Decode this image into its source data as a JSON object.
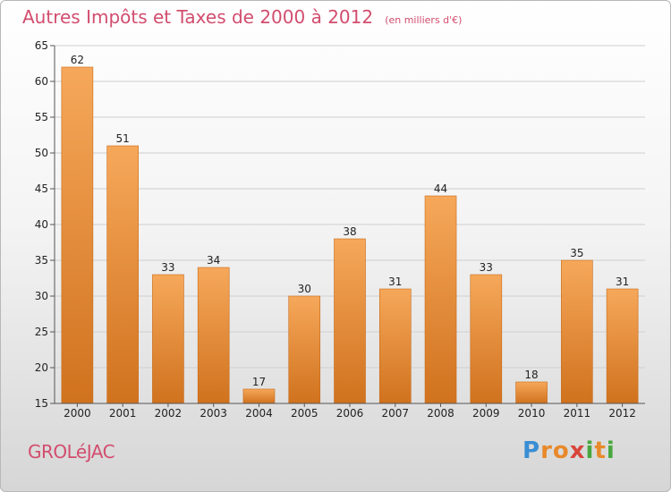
{
  "header": {
    "title": "Autres Impôts et Taxes de 2000 à 2012",
    "subtitle": "(en milliers d'€)"
  },
  "commune": "GROLéJAC",
  "logo": {
    "text": "Proxiti",
    "letters": [
      {
        "char": "P",
        "color": "#3a8ed4"
      },
      {
        "char": "r",
        "color": "#e8892a"
      },
      {
        "char": "o",
        "color": "#e8892a"
      },
      {
        "char": "x",
        "color": "#d8463c"
      },
      {
        "char": "i",
        "color": "#48a73e"
      },
      {
        "char": "t",
        "color": "#e8892a"
      },
      {
        "char": "i",
        "color": "#48a73e"
      }
    ]
  },
  "colors": {
    "bar_top": "#f6a85a",
    "bar_bottom": "#d0721e",
    "bar_stroke": "#c76a18",
    "grid": "#cfcfcf",
    "axis": "#555555",
    "text": "#222222",
    "title": "#d24d6e"
  },
  "chart_data": {
    "type": "bar",
    "title": "Autres Impôts et Taxes de 2000 à 2012",
    "subtitle": "(en milliers d'€)",
    "categories": [
      "2000",
      "2001",
      "2002",
      "2003",
      "2004",
      "2005",
      "2006",
      "2007",
      "2008",
      "2009",
      "2010",
      "2011",
      "2012"
    ],
    "values": [
      62,
      51,
      33,
      34,
      17,
      30,
      38,
      31,
      44,
      33,
      18,
      35,
      31
    ],
    "ylim": [
      15,
      65
    ],
    "yticks": [
      15,
      20,
      25,
      30,
      35,
      40,
      45,
      50,
      55,
      60,
      65
    ],
    "grid": true,
    "data_labels": true,
    "xlabel": "",
    "ylabel": ""
  }
}
